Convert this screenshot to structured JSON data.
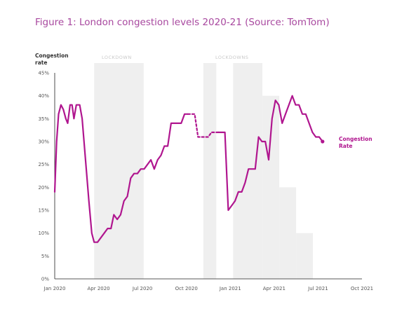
{
  "page": {
    "title": "Figure 1: London congestion levels 2020-21 (Source: TomTom)"
  },
  "chart_data": {
    "type": "line",
    "title": "Figure 1: London congestion levels 2020-21 (Source: TomTom)",
    "ylabel": "Congestion rate",
    "xlabel": "",
    "ylim": [
      0,
      45
    ],
    "y_tick_labels": [
      "0%",
      "5%",
      "10%",
      "15%",
      "20%",
      "25%",
      "30%",
      "35%",
      "40%",
      "45%"
    ],
    "x_tick_labels": [
      "Jan 2020",
      "Apr 2020",
      "Jul 2020",
      "Oct 2020",
      "Jan 2021",
      "Apr 2021",
      "Jul 2021",
      "Oct 2021"
    ],
    "x_range": [
      "2020-01-01",
      "2021-10-01"
    ],
    "grid": false,
    "line_color": "#b0168f",
    "shading_color": "#efefef",
    "lockdown_labels": [
      "LOCKDOWN",
      "LOCKDOWNS"
    ],
    "lockdown_periods": [
      {
        "start": "2020-03-23",
        "end": "2020-07-04"
      },
      {
        "start": "2020-11-05",
        "end": "2020-12-02"
      },
      {
        "start": "2021-01-06",
        "end": "2021-03-08"
      }
    ],
    "easing_steps": [
      {
        "start": "2021-03-08",
        "end": "2021-04-12",
        "top": 40
      },
      {
        "start": "2021-04-12",
        "end": "2021-05-17",
        "top": 20
      },
      {
        "start": "2021-05-17",
        "end": "2021-06-21",
        "top": 10
      }
    ],
    "series": [
      {
        "name": "Congestion Rate",
        "segments": [
          {
            "style": "solid",
            "points": [
              [
                "2020-01-01",
                19
              ],
              [
                "2020-01-05",
                30
              ],
              [
                "2020-01-09",
                36
              ],
              [
                "2020-01-14",
                38
              ],
              [
                "2020-01-19",
                37
              ],
              [
                "2020-01-24",
                35
              ],
              [
                "2020-01-28",
                34
              ],
              [
                "2020-02-02",
                38
              ],
              [
                "2020-02-06",
                38
              ],
              [
                "2020-02-10",
                35
              ],
              [
                "2020-02-15",
                38
              ],
              [
                "2020-02-22",
                38
              ],
              [
                "2020-02-27",
                35
              ],
              [
                "2020-03-05",
                26
              ],
              [
                "2020-03-12",
                17
              ],
              [
                "2020-03-18",
                10
              ],
              [
                "2020-03-23",
                8
              ],
              [
                "2020-03-30",
                8
              ],
              [
                "2020-04-06",
                9
              ],
              [
                "2020-04-13",
                10
              ],
              [
                "2020-04-20",
                11
              ],
              [
                "2020-04-27",
                11
              ],
              [
                "2020-05-03",
                14
              ],
              [
                "2020-05-10",
                13
              ],
              [
                "2020-05-17",
                14
              ],
              [
                "2020-05-24",
                17
              ],
              [
                "2020-05-31",
                18
              ],
              [
                "2020-06-07",
                22
              ],
              [
                "2020-06-14",
                23
              ],
              [
                "2020-06-21",
                23
              ],
              [
                "2020-06-28",
                24
              ],
              [
                "2020-07-05",
                24
              ],
              [
                "2020-07-12",
                25
              ],
              [
                "2020-07-19",
                26
              ],
              [
                "2020-07-26",
                24
              ],
              [
                "2020-08-02",
                26
              ],
              [
                "2020-08-09",
                27
              ],
              [
                "2020-08-16",
                29
              ],
              [
                "2020-08-23",
                29
              ],
              [
                "2020-08-30",
                34
              ],
              [
                "2020-09-06",
                34
              ],
              [
                "2020-09-13",
                34
              ],
              [
                "2020-09-20",
                34
              ],
              [
                "2020-09-27",
                36
              ],
              [
                "2020-10-04",
                36
              ]
            ]
          },
          {
            "style": "dotted",
            "points": [
              [
                "2020-10-04",
                36
              ],
              [
                "2020-10-18",
                36
              ],
              [
                "2020-10-25",
                31
              ],
              [
                "2020-11-15",
                31
              ],
              [
                "2020-11-22",
                32
              ],
              [
                "2020-12-06",
                32
              ]
            ]
          },
          {
            "style": "solid",
            "points": [
              [
                "2020-12-06",
                32
              ],
              [
                "2020-12-13",
                32
              ],
              [
                "2020-12-20",
                32
              ],
              [
                "2020-12-27",
                15
              ],
              [
                "2021-01-03",
                16
              ],
              [
                "2021-01-10",
                17
              ],
              [
                "2021-01-17",
                19
              ],
              [
                "2021-01-24",
                19
              ],
              [
                "2021-01-31",
                21
              ],
              [
                "2021-02-07",
                24
              ],
              [
                "2021-02-14",
                24
              ],
              [
                "2021-02-21",
                24
              ],
              [
                "2021-02-28",
                31
              ],
              [
                "2021-03-07",
                30
              ],
              [
                "2021-03-14",
                30
              ],
              [
                "2021-03-21",
                26
              ],
              [
                "2021-03-28",
                35
              ],
              [
                "2021-04-04",
                39
              ],
              [
                "2021-04-11",
                38
              ],
              [
                "2021-04-18",
                34
              ],
              [
                "2021-04-25",
                36
              ],
              [
                "2021-05-02",
                38
              ],
              [
                "2021-05-09",
                40
              ],
              [
                "2021-05-16",
                38
              ],
              [
                "2021-05-23",
                38
              ],
              [
                "2021-05-30",
                36
              ],
              [
                "2021-06-06",
                36
              ],
              [
                "2021-06-13",
                34
              ],
              [
                "2021-06-20",
                32
              ],
              [
                "2021-06-27",
                31
              ],
              [
                "2021-07-04",
                31
              ],
              [
                "2021-07-11",
                30
              ]
            ]
          }
        ]
      }
    ]
  }
}
